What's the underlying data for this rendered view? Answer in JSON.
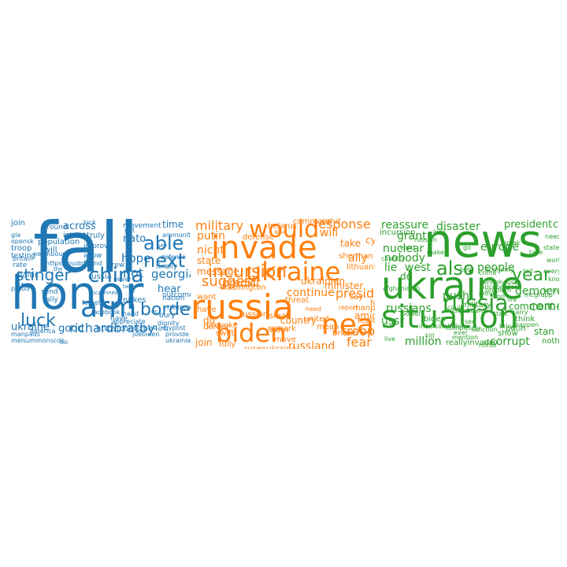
{
  "colors": {
    "cloud1": "#1f77b4",
    "cloud2": "#ff7f0e",
    "cloud3": "#2ca02c"
  },
  "clouds": [
    {
      "words": [
        "fall",
        "honor",
        "china",
        "stinger",
        "arm",
        "luck",
        "richardbratby",
        "able",
        "next",
        "border",
        "across",
        "time",
        "nato",
        "hope",
        "not",
        "georgia",
        "hear",
        "good",
        "ukraine",
        "join",
        "around",
        "intrest",
        "truly",
        "improve",
        "movement",
        "ammunition",
        "population",
        "will",
        "allow",
        "friend",
        "brew",
        "russia",
        "never",
        "defense",
        "finally",
        "outcome",
        "nation",
        "nkorea",
        "bury",
        "dignity",
        "mypost",
        "provide",
        "nukes",
        "hand",
        "have",
        "httpstcoqtjzph4iru",
        "joebiden",
        "ukrainian",
        "troop",
        "testing",
        "rate",
        "baltic",
        "stop",
        "proud",
        "send",
        "ally",
        "mcconnell",
        "manpads",
        "do",
        "neighbour",
        "forget",
        "appreciate",
        "get",
        "httpstcoudqjgjz",
        "gla",
        "opensk",
        "britain",
        "facebook",
        "america",
        "melsummonscdc",
        "kick",
        "the",
        "see",
        "take",
        "us"
      ]
    },
    {
      "words": [
        "invade",
        "would",
        "ukraine",
        "russia",
        "incursion",
        "biden",
        "near",
        "suggest",
        "military",
        "response",
        "putin",
        "nicht",
        "state",
        "predict",
        "president",
        "message",
        "will",
        "ally",
        "take",
        "cyber",
        "continue",
        "troop",
        "fear",
        "russland",
        "join",
        "do",
        "border",
        "force",
        "amid",
        "minister",
        "ukrainian",
        "country",
        "united",
        "washington",
        "russian",
        "remark",
        "mean",
        "move",
        "say",
        "belarus",
        "command",
        "send",
        "sherman",
        "lithuania",
        "provoke",
        "region",
        "small",
        "defense",
        "threat",
        "britain",
        "warn",
        "want",
        "manpads",
        "rusenukraine",
        "swift",
        "fully",
        "have",
        "report",
        "also",
        "need"
      ]
    },
    {
      "words": [
        "news",
        "ukraine",
        "situation",
        "also",
        "year",
        "russia",
        "reassure",
        "disaster",
        "president",
        "cause",
        "incursion",
        "grant",
        "nuclear",
        "nobody",
        "west",
        "europe",
        "lie",
        "do",
        "people",
        "democracy",
        "russians",
        "comment",
        "come",
        "think",
        "ussr",
        "biden",
        "putin",
        "stan",
        "million",
        "reallyinvade",
        "corrupt",
        "nothing",
        "push",
        "military",
        "show",
        "country",
        "crime",
        "afghanistan",
        "whitehouse",
        "world",
        "every",
        "know",
        "leave",
        "problem",
        "economy",
        "incursionbiden",
        "pricebroder",
        "soon",
        "life",
        "carry",
        "happen",
        "could",
        "russian",
        "help",
        "tulsigabbard",
        "elect",
        "move",
        "start",
        "state",
        "power",
        "see",
        "stop",
        "mcgrupp",
        "tell",
        "bring",
        "completely",
        "take",
        "need",
        "ever",
        "kill",
        "mention",
        "sanction",
        "minor",
        "look",
        "go",
        "make",
        "live",
        "break"
      ]
    }
  ]
}
